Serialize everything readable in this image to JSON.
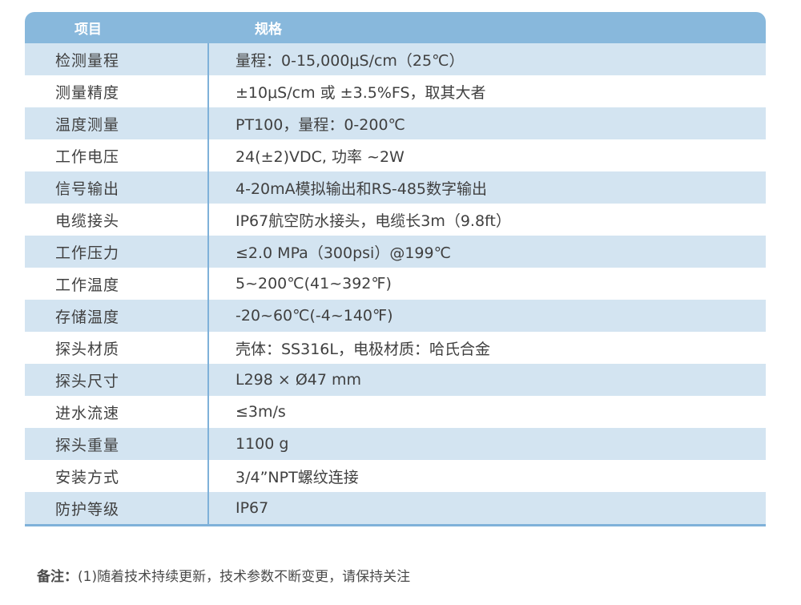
{
  "table": {
    "headers": [
      "项目",
      "规格"
    ],
    "rows": [
      {
        "item": "检测量程",
        "spec": "量程：0-15,000μS/cm（25℃）"
      },
      {
        "item": "测量精度",
        "spec": "±10μS/cm 或 ±3.5%FS，取其大者"
      },
      {
        "item": "温度测量",
        "spec": "PT100，量程：0-200℃"
      },
      {
        "item": "工作电压",
        "spec": "24(±2)VDC, 功率 ~2W"
      },
      {
        "item": "信号输出",
        "spec": "4-20mA模拟输出和RS-485数字输出"
      },
      {
        "item": "电缆接头",
        "spec": "IP67航空防水接头，电缆长3m（9.8ft）"
      },
      {
        "item": "工作压力",
        "spec": "≤2.0 MPa（300psi）@199℃"
      },
      {
        "item": "工作温度",
        "spec": "5~200℃(41~392℉)"
      },
      {
        "item": "存储温度",
        "spec": "-20~60℃(-4~140℉)"
      },
      {
        "item": "探头材质",
        "spec": "壳体：SS316L，电极材质：哈氏合金"
      },
      {
        "item": "探头尺寸",
        "spec": "L298 × Ø47 mm"
      },
      {
        "item": "进水流速",
        "spec": "≤3m/s"
      },
      {
        "item": "探头重量",
        "spec": "1100 g"
      },
      {
        "item": "安装方式",
        "spec": "3/4”NPT螺纹连接"
      },
      {
        "item": "防护等级",
        "spec": "IP67"
      }
    ]
  },
  "note": {
    "label": "备注：",
    "text": "(1)随着技术持续更新，技术参数不断变更，请保持关注"
  }
}
